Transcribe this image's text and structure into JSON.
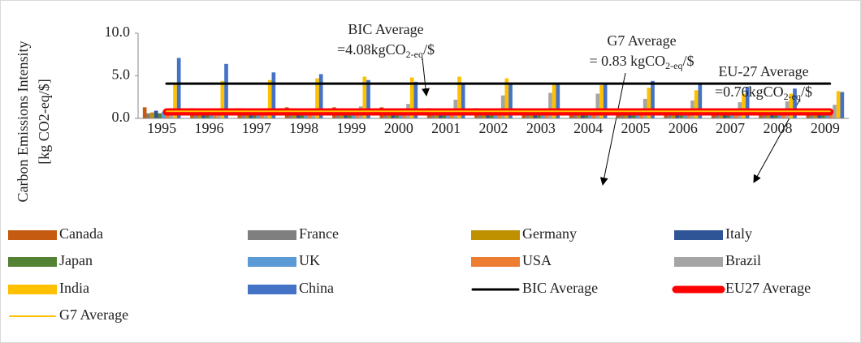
{
  "chart_data": {
    "type": "bar",
    "ylabel": [
      "Carbon Emissions Intensity",
      "[kg CO2-eq/$]"
    ],
    "categories": [
      "1995",
      "1996",
      "1997",
      "1998",
      "1999",
      "2000",
      "2001",
      "2002",
      "2003",
      "2004",
      "2005",
      "2006",
      "2007",
      "2008",
      "2009"
    ],
    "ylim": [
      0,
      10
    ],
    "yticks": [
      {
        "value": 0,
        "label": "0.0"
      },
      {
        "value": 5,
        "label": "5.0"
      },
      {
        "value": 10,
        "label": "10.0"
      }
    ],
    "series": [
      {
        "name": "Canada",
        "color": "#c55a11",
        "values": [
          1.3,
          1.2,
          1.2,
          1.3,
          1.3,
          1.3,
          1.2,
          1.2,
          1.1,
          1.1,
          1.1,
          1.0,
          1.0,
          1.0,
          1.0
        ]
      },
      {
        "name": "France",
        "color": "#7f7f7f",
        "values": [
          0.6,
          0.6,
          0.6,
          0.6,
          0.6,
          0.5,
          0.5,
          0.5,
          0.5,
          0.5,
          0.5,
          0.5,
          0.5,
          0.4,
          0.4
        ]
      },
      {
        "name": "Germany",
        "color": "#bf9000",
        "values": [
          0.7,
          0.7,
          0.7,
          0.7,
          0.7,
          0.7,
          0.7,
          0.7,
          0.7,
          0.7,
          0.6,
          0.6,
          0.6,
          0.6,
          0.6
        ]
      },
      {
        "name": "Italy",
        "color": "#2f5597",
        "values": [
          0.9,
          0.9,
          0.8,
          0.8,
          0.8,
          0.8,
          0.8,
          0.8,
          0.8,
          0.8,
          0.8,
          0.7,
          0.7,
          0.7,
          0.7
        ]
      },
      {
        "name": "Japan",
        "color": "#548235",
        "values": [
          0.6,
          0.6,
          0.6,
          0.6,
          0.6,
          0.6,
          0.6,
          0.6,
          0.6,
          0.6,
          0.6,
          0.6,
          0.6,
          0.6,
          0.6
        ]
      },
      {
        "name": "UK",
        "color": "#5b9bd5",
        "values": [
          0.8,
          0.8,
          0.7,
          0.7,
          0.7,
          0.7,
          0.7,
          0.6,
          0.6,
          0.6,
          0.6,
          0.6,
          0.5,
          0.5,
          0.5
        ]
      },
      {
        "name": "USA",
        "color": "#ed7d31",
        "values": [
          1.1,
          1.1,
          1.1,
          1.0,
          1.0,
          1.0,
          1.0,
          1.0,
          1.0,
          1.0,
          1.0,
          0.9,
          0.9,
          0.9,
          0.9
        ]
      },
      {
        "name": "Brazil",
        "color": "#a5a5a5",
        "values": [
          0.9,
          0.9,
          0.9,
          1.0,
          1.4,
          1.7,
          2.2,
          2.7,
          3.0,
          2.9,
          2.3,
          2.1,
          1.9,
          2.0,
          1.6
        ]
      },
      {
        "name": "India",
        "color": "#ffc000",
        "values": [
          4.2,
          4.4,
          4.5,
          4.7,
          4.9,
          4.8,
          4.9,
          4.7,
          4.0,
          3.9,
          3.6,
          3.3,
          2.9,
          2.9,
          3.2
        ]
      },
      {
        "name": "China",
        "color": "#4472c4",
        "values": [
          7.1,
          6.4,
          5.4,
          5.2,
          4.5,
          4.3,
          4.1,
          4.0,
          4.0,
          4.1,
          4.4,
          4.1,
          3.7,
          3.5,
          3.1
        ]
      },
      {
        "name": "BIC Average",
        "type": "line",
        "color": "#000000",
        "value": 4.08
      },
      {
        "name": "EU27 Average",
        "type": "line",
        "color": "#ff0000",
        "value": 0.76
      },
      {
        "name": "G7 Average",
        "type": "line",
        "color": "#ffc000",
        "value": 0.83
      }
    ],
    "annotations": [
      {
        "title": "BIC Average",
        "text": [
          "=4.08kgCO",
          "2-eq",
          "/$"
        ]
      },
      {
        "title": "G7 Average",
        "text": [
          "= 0.83 kgCO",
          "2-eq",
          "/$"
        ]
      },
      {
        "title": "EU-27 Average",
        "text": [
          "=0.76kgCO",
          "2-eq",
          "/$"
        ]
      }
    ]
  }
}
